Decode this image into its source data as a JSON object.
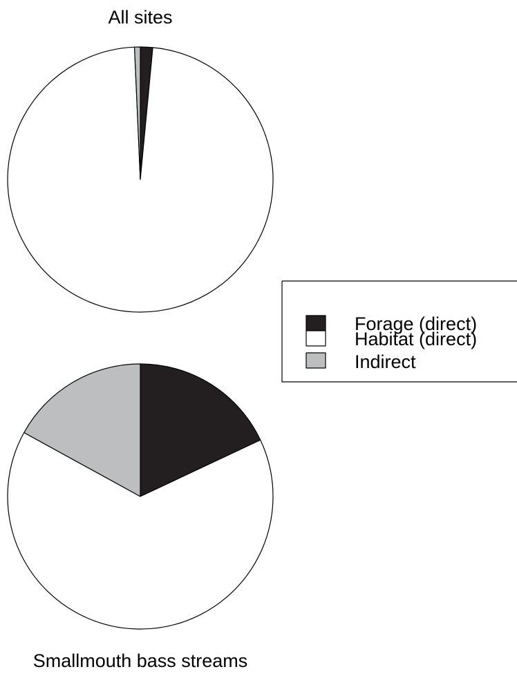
{
  "chart_data": [
    {
      "type": "pie",
      "title": "All sites",
      "start_angle_deg": 0,
      "direction": "clockwise",
      "slices": [
        {
          "label": "Forage (direct)",
          "value": 1.5,
          "color": "#231f20"
        },
        {
          "label": "Habitat (direct)",
          "value": 97.8,
          "color": "#ffffff"
        },
        {
          "label": "Indirect",
          "value": 0.7,
          "color": "#bcbec0"
        }
      ]
    },
    {
      "type": "pie",
      "title": "Smallmouth bass streams",
      "start_angle_deg": 0,
      "direction": "clockwise",
      "slices": [
        {
          "label": "Forage (direct)",
          "value": 18,
          "color": "#231f20"
        },
        {
          "label": "Habitat (direct)",
          "value": 65,
          "color": "#ffffff"
        },
        {
          "label": "Indirect",
          "value": 17,
          "color": "#bcbec0"
        }
      ]
    }
  ],
  "legend": {
    "placement": "right-middle",
    "items": [
      {
        "label": "Forage (direct)",
        "color": "#231f20"
      },
      {
        "label": "Habitat (direct)",
        "color": "#ffffff"
      },
      {
        "label": "Indirect",
        "color": "#bcbec0"
      }
    ]
  }
}
